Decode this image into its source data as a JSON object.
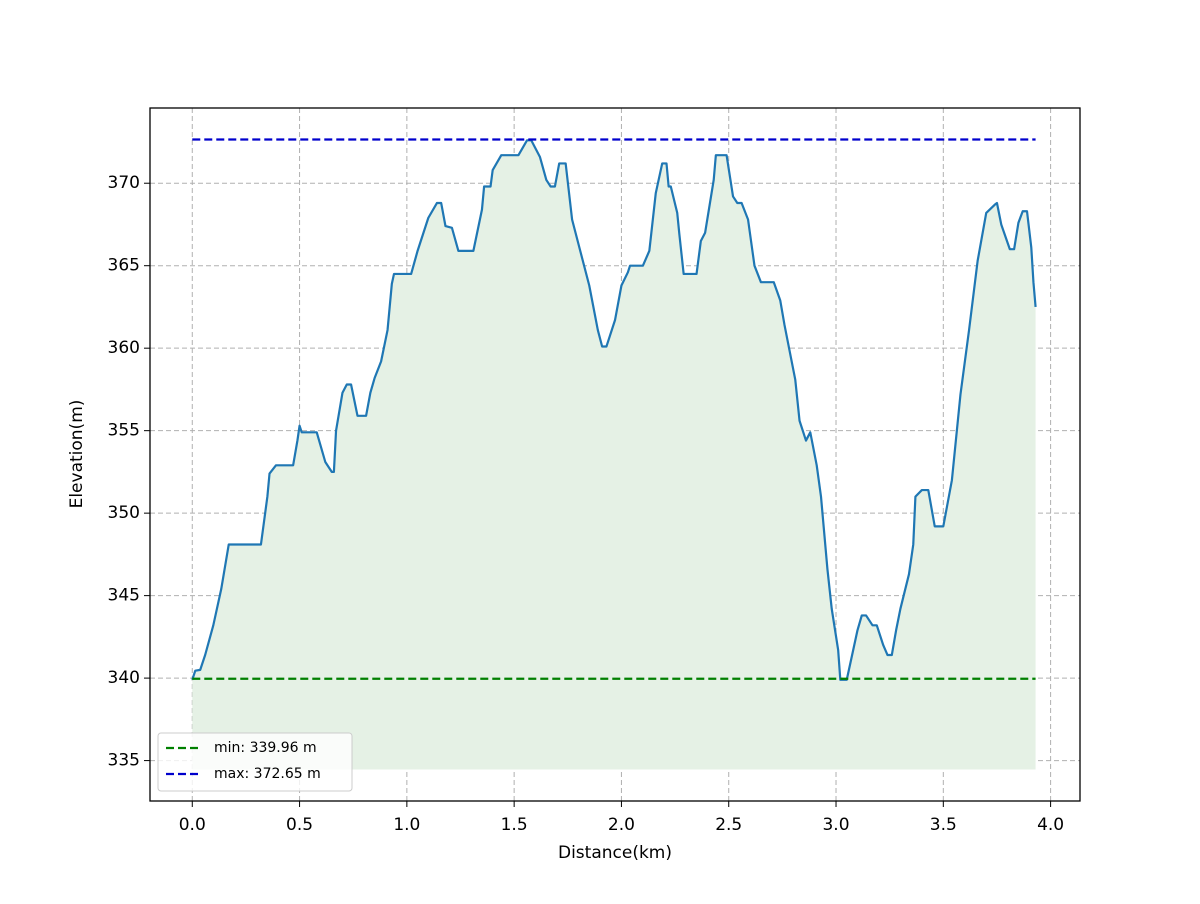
{
  "chart_data": {
    "type": "area",
    "xlabel": "Distance(km)",
    "ylabel": "Elevation(m)",
    "x": [
      0,
      0.014,
      0.037,
      0.06,
      0.098,
      0.135,
      0.17,
      0.32,
      0.35,
      0.36,
      0.39,
      0.47,
      0.49,
      0.5,
      0.51,
      0.58,
      0.62,
      0.65,
      0.66,
      0.67,
      0.7,
      0.72,
      0.74,
      0.77,
      0.81,
      0.83,
      0.85,
      0.88,
      0.91,
      0.93,
      0.94,
      1.02,
      1.05,
      1.1,
      1.14,
      1.16,
      1.18,
      1.21,
      1.24,
      1.31,
      1.35,
      1.36,
      1.39,
      1.4,
      1.44,
      1.52,
      1.56,
      1.58,
      1.62,
      1.65,
      1.67,
      1.69,
      1.71,
      1.74,
      1.77,
      1.81,
      1.85,
      1.89,
      1.91,
      1.93,
      1.97,
      2.0,
      2.03,
      2.04,
      2.1,
      2.13,
      2.16,
      2.19,
      2.21,
      2.22,
      2.23,
      2.26,
      2.27,
      2.29,
      2.35,
      2.37,
      2.39,
      2.43,
      2.44,
      2.49,
      2.52,
      2.54,
      2.56,
      2.59,
      2.62,
      2.65,
      2.71,
      2.74,
      2.76,
      2.81,
      2.83,
      2.86,
      2.88,
      2.91,
      2.93,
      2.96,
      2.98,
      3.01,
      3.02,
      3.05,
      3.07,
      3.1,
      3.12,
      3.14,
      3.17,
      3.19,
      3.22,
      3.24,
      3.26,
      3.28,
      3.3,
      3.34,
      3.36,
      3.37,
      3.4,
      3.43,
      3.46,
      3.5,
      3.54,
      3.58,
      3.62,
      3.66,
      3.7,
      3.74,
      3.75,
      3.77,
      3.81,
      3.83,
      3.85,
      3.87,
      3.89,
      3.91,
      3.92,
      3.93
    ],
    "series": [
      {
        "color": "#1f77b4",
        "fill": "#e5f1e5",
        "values": [
          339.9,
          340.45,
          340.5,
          341.4,
          343.2,
          345.4,
          348.1,
          348.1,
          351.0,
          352.4,
          352.9,
          352.9,
          354.4,
          355.3,
          354.9,
          354.9,
          353.1,
          352.5,
          352.5,
          355.0,
          357.3,
          357.8,
          357.8,
          355.9,
          355.9,
          357.3,
          358.2,
          359.2,
          361.1,
          363.9,
          364.5,
          364.5,
          365.9,
          367.9,
          368.8,
          368.8,
          367.4,
          367.3,
          365.9,
          365.9,
          368.4,
          369.8,
          369.8,
          370.8,
          371.7,
          371.7,
          372.6,
          372.6,
          371.6,
          370.2,
          369.8,
          369.8,
          371.2,
          371.2,
          367.8,
          365.8,
          363.8,
          361.1,
          360.1,
          360.1,
          361.7,
          363.8,
          364.6,
          365.0,
          365.0,
          365.9,
          369.4,
          371.2,
          371.2,
          369.8,
          369.8,
          368.2,
          366.9,
          364.5,
          364.5,
          366.5,
          367.0,
          370.2,
          371.7,
          371.7,
          369.2,
          368.8,
          368.8,
          367.8,
          365.0,
          364.0,
          364.0,
          362.9,
          361.4,
          358.1,
          355.6,
          354.4,
          354.9,
          352.9,
          351.0,
          346.6,
          344.2,
          341.7,
          339.9,
          339.9,
          341.1,
          342.9,
          343.8,
          343.8,
          343.2,
          343.2,
          342.0,
          341.4,
          341.4,
          342.9,
          344.2,
          346.3,
          348.1,
          351.0,
          351.4,
          351.4,
          349.2,
          349.2,
          352.0,
          357.2,
          361.1,
          365.3,
          368.2,
          368.7,
          368.8,
          367.5,
          366.0,
          366.0,
          367.6,
          368.3,
          368.3,
          366.1,
          364.0,
          362.5
        ]
      }
    ],
    "fill_base": 334.46,
    "reference_lines": [
      {
        "name": "min: 339.96 m",
        "value": 339.96,
        "color": "#008000"
      },
      {
        "name": "max: 372.65 m",
        "value": 372.65,
        "color": "#0000cc"
      }
    ],
    "xlim": [
      -0.197,
      4.137
    ],
    "ylim": [
      332.55,
      374.56
    ],
    "xticks": [
      {
        "value": 0,
        "label": "0.0"
      },
      0.5,
      {
        "value": 1,
        "label": "1.0"
      },
      1.5,
      {
        "value": 2,
        "label": "2.0"
      },
      2.5,
      {
        "value": 3,
        "label": "3.0"
      },
      3.5,
      {
        "value": 4,
        "label": "4.0"
      }
    ],
    "yticks": [
      335,
      340,
      345,
      350,
      355,
      360,
      365,
      370
    ],
    "grid": true,
    "legend": "lower left"
  }
}
